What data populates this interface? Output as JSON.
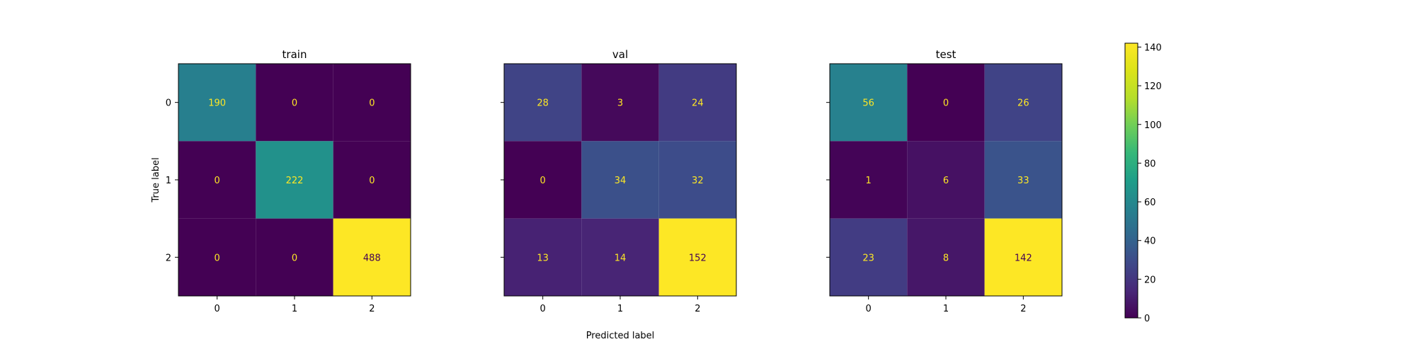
{
  "figure": {
    "xlabel": "Predicted label",
    "ylabel": "True label"
  },
  "chart_data": [
    {
      "type": "heatmap",
      "title": "train",
      "x_categories": [
        "0",
        "1",
        "2"
      ],
      "y_categories": [
        "0",
        "1",
        "2"
      ],
      "values": [
        [
          190,
          0,
          0
        ],
        [
          0,
          222,
          0
        ],
        [
          0,
          0,
          488
        ]
      ],
      "show_ylabel": true,
      "show_ytick_labels": true
    },
    {
      "type": "heatmap",
      "title": "val",
      "x_categories": [
        "0",
        "1",
        "2"
      ],
      "y_categories": [
        "0",
        "1",
        "2"
      ],
      "values": [
        [
          28,
          3,
          24
        ],
        [
          0,
          34,
          32
        ],
        [
          13,
          14,
          152
        ]
      ],
      "show_ylabel": false,
      "show_ytick_labels": false
    },
    {
      "type": "heatmap",
      "title": "test",
      "x_categories": [
        "0",
        "1",
        "2"
      ],
      "y_categories": [
        "0",
        "1",
        "2"
      ],
      "values": [
        [
          56,
          0,
          26
        ],
        [
          1,
          6,
          33
        ],
        [
          23,
          8,
          142
        ]
      ],
      "show_ylabel": false,
      "show_ytick_labels": false
    }
  ],
  "colorbar": {
    "colormap": "viridis",
    "min": 0,
    "max": 142,
    "ticks": [
      0,
      20,
      40,
      60,
      80,
      100,
      120,
      140
    ],
    "tick_labels": [
      "0",
      "20",
      "40",
      "60",
      "80",
      "100",
      "120",
      "140"
    ]
  },
  "colors": {
    "text_on_dark": "#fde725",
    "text_on_light": "#440154"
  }
}
